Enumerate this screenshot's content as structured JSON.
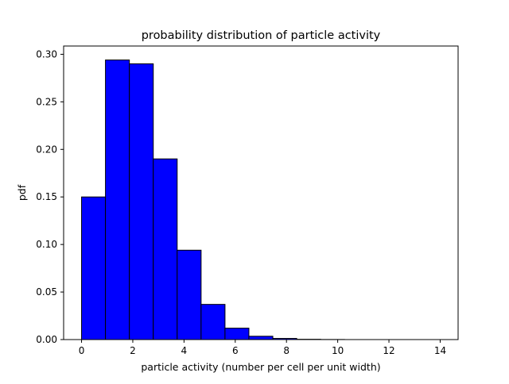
{
  "chart_data": {
    "type": "histogram",
    "title": "probability distribution of particle activity",
    "xlabel": "particle activity (number per cell per unit width)",
    "ylabel": "pdf",
    "xlim": [
      -0.7,
      14.7
    ],
    "ylim": [
      0,
      0.3087
    ],
    "bar_color": "#0000ff",
    "edge_color": "#000000",
    "xticks": [
      0,
      2,
      4,
      6,
      8,
      10,
      12,
      14
    ],
    "xtick_labels": [
      "0",
      "2",
      "4",
      "6",
      "8",
      "10",
      "12",
      "14"
    ],
    "yticks": [
      0.0,
      0.05,
      0.1,
      0.15,
      0.2,
      0.25,
      0.3
    ],
    "ytick_labels": [
      "0.00",
      "0.05",
      "0.10",
      "0.15",
      "0.20",
      "0.25",
      "0.30"
    ],
    "bin_edges": [
      0,
      0.933,
      1.867,
      2.8,
      3.733,
      4.667,
      5.6,
      6.533,
      7.467,
      8.4,
      9.333,
      10.267,
      11.2,
      12.133,
      13.067,
      14
    ],
    "values": [
      0.15,
      0.294,
      0.29,
      0.19,
      0.094,
      0.037,
      0.012,
      0.0035,
      0.0012,
      0.0003,
      0.0001,
      0,
      0,
      0,
      0
    ]
  }
}
